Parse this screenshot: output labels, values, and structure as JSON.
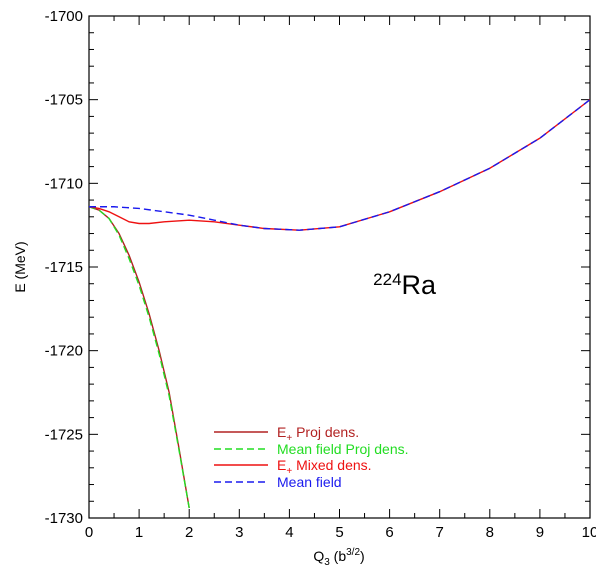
{
  "chart_data": {
    "type": "line",
    "xlabel_main": "Q",
    "xlabel_sub": "3",
    "xlabel_unit_pre": " (b",
    "xlabel_unit_sup": "3/2",
    "xlabel_unit_post": ")",
    "ylabel": "E (MeV)",
    "xlim": [
      0,
      10
    ],
    "ylim": [
      -1730,
      -1700
    ],
    "xticks": [
      0,
      1,
      2,
      3,
      4,
      5,
      6,
      7,
      8,
      9,
      10
    ],
    "yticks": [
      -1730,
      -1725,
      -1720,
      -1715,
      -1710,
      -1705,
      -1700
    ],
    "annotation": {
      "sup": "224",
      "text": "Ra",
      "x": 6.3,
      "y": -1716.6
    },
    "series": [
      {
        "name_main": "E",
        "name_sub": "+",
        "name_rest": " Proj dens.",
        "color": "#b22222",
        "dash": "solid",
        "points": [
          [
            0,
            -1711.4
          ],
          [
            0.2,
            -1711.6
          ],
          [
            0.4,
            -1712.1
          ],
          [
            0.6,
            -1713.0
          ],
          [
            0.8,
            -1714.3
          ],
          [
            1.0,
            -1715.9
          ],
          [
            1.2,
            -1717.8
          ],
          [
            1.4,
            -1720.0
          ],
          [
            1.6,
            -1722.5
          ],
          [
            1.8,
            -1725.9
          ],
          [
            2.0,
            -1729.4
          ]
        ]
      },
      {
        "name_main": "Mean field Proj dens.",
        "name_sub": "",
        "name_rest": "",
        "color": "#22dd22",
        "dash": "dashed",
        "points": [
          [
            0,
            -1711.4
          ],
          [
            0.2,
            -1711.6
          ],
          [
            0.4,
            -1712.1
          ],
          [
            0.6,
            -1713.1
          ],
          [
            0.8,
            -1714.5
          ],
          [
            1.0,
            -1716.1
          ],
          [
            1.2,
            -1718.0
          ],
          [
            1.4,
            -1720.2
          ],
          [
            1.6,
            -1722.7
          ],
          [
            1.8,
            -1726.0
          ],
          [
            2.0,
            -1729.4
          ]
        ]
      },
      {
        "name_main": "E",
        "name_sub": "+",
        "name_rest": " Mixed dens.",
        "color": "#ee1111",
        "dash": "solid",
        "points": [
          [
            0,
            -1711.4
          ],
          [
            0.2,
            -1711.5
          ],
          [
            0.4,
            -1711.7
          ],
          [
            0.6,
            -1712.0
          ],
          [
            0.8,
            -1712.3
          ],
          [
            1.0,
            -1712.4
          ],
          [
            1.2,
            -1712.4
          ],
          [
            1.5,
            -1712.3
          ],
          [
            2.0,
            -1712.2
          ],
          [
            2.5,
            -1712.3
          ],
          [
            3.0,
            -1712.5
          ],
          [
            3.5,
            -1712.7
          ],
          [
            4.2,
            -1712.8
          ],
          [
            5.0,
            -1712.6
          ],
          [
            6.0,
            -1711.7
          ],
          [
            7.0,
            -1710.5
          ],
          [
            8.0,
            -1709.1
          ],
          [
            9.0,
            -1707.3
          ],
          [
            10.0,
            -1705.0
          ]
        ]
      },
      {
        "name_main": "Mean field",
        "name_sub": "",
        "name_rest": "",
        "color": "#1a1aee",
        "dash": "dashed",
        "points": [
          [
            0,
            -1711.4
          ],
          [
            0.5,
            -1711.4
          ],
          [
            1.0,
            -1711.5
          ],
          [
            1.5,
            -1711.7
          ],
          [
            2.0,
            -1711.9
          ],
          [
            2.5,
            -1712.2
          ],
          [
            3.0,
            -1712.5
          ],
          [
            3.5,
            -1712.7
          ],
          [
            4.2,
            -1712.8
          ],
          [
            5.0,
            -1712.6
          ],
          [
            6.0,
            -1711.7
          ],
          [
            7.0,
            -1710.5
          ],
          [
            8.0,
            -1709.1
          ],
          [
            9.0,
            -1707.3
          ],
          [
            10.0,
            -1705.0
          ]
        ]
      }
    ]
  }
}
